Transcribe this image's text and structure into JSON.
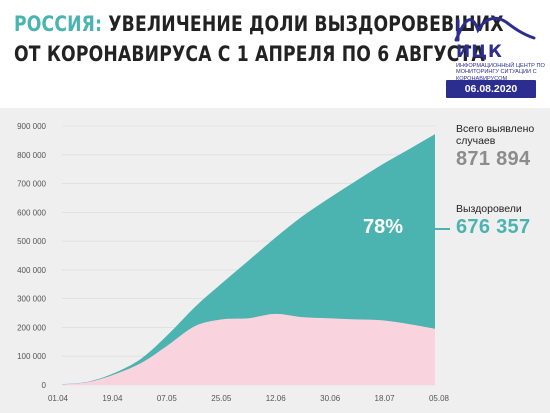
{
  "header": {
    "title_accent": "РОССИЯ:",
    "title_line1_rest": " УВЕЛИЧЕНИЕ ДОЛИ ВЫЗДОРОВЕВШИХ",
    "title_line2": "ОТ КОРОНАВИРУСА С 1 АПРЕЛЯ ПО 6 АВГУСТА"
  },
  "logo": {
    "name": "ИЦК",
    "subtitle": "Информационный центр по мониторингу ситуации с коронавирусом"
  },
  "date_badge": "06.08.2020",
  "colors": {
    "total_cases": "#4bb3b0",
    "recovered": "#f9d3de",
    "brand": "#2c2e8f",
    "panel": "#efefef"
  },
  "stats": {
    "total_label": "Всего выявлено случаев",
    "total_value": "871 894",
    "recovered_label": "Выздоровели",
    "recovered_value": "676 357",
    "recovered_percent": "78%"
  },
  "chart_data": {
    "type": "area",
    "title": "",
    "xlabel": "",
    "ylabel": "",
    "ylim": [
      0,
      900000
    ],
    "yticks": [
      0,
      100000,
      200000,
      300000,
      400000,
      500000,
      600000,
      700000,
      800000,
      900000
    ],
    "ytick_labels": [
      "0",
      "100 000",
      "200 000",
      "300 000",
      "400 000",
      "500 000",
      "600 000",
      "700 000",
      "800 000",
      "900 000"
    ],
    "xticks": [
      "01.04",
      "19.04",
      "07.05",
      "25.05",
      "12.06",
      "30.06",
      "18.07",
      "05.08"
    ],
    "grid": true,
    "legend": "none",
    "x": [
      "01.04",
      "10.04",
      "19.04",
      "28.04",
      "07.05",
      "16.05",
      "25.05",
      "03.06",
      "12.06",
      "21.06",
      "30.06",
      "09.07",
      "18.07",
      "27.07",
      "06.08"
    ],
    "series": [
      {
        "values": [
          2777,
          11917,
          42853,
          93558,
          177160,
          272043,
          353427,
          432277,
          511423,
          584680,
          647849,
          707301,
          765437,
          818120,
          871894
        ]
      },
      {
        "values": [
          2000,
          10500,
          38000,
          78000,
          140000,
          205000,
          228000,
          232000,
          247000,
          236000,
          232000,
          228000,
          225000,
          212000,
          195537
        ]
      }
    ]
  }
}
